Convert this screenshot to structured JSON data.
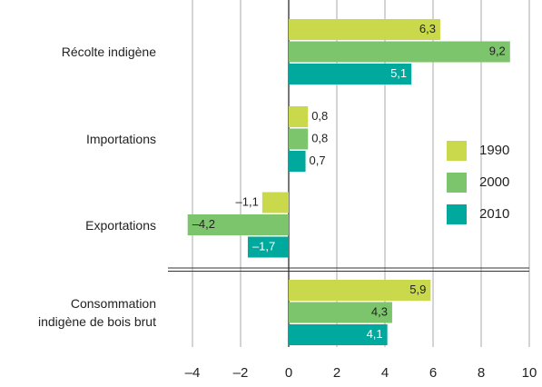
{
  "chart_data": {
    "type": "barh",
    "categories": [
      "Récolte indigène",
      "Importations",
      "Exportations",
      "Consommation indigène de bois brut"
    ],
    "series": [
      {
        "name": "1990",
        "color": "#c9d94b",
        "values": [
          6.3,
          0.8,
          -1.1,
          5.9
        ],
        "value_labels": [
          "6,3",
          "0,8",
          "–1,1",
          "5,9"
        ]
      },
      {
        "name": "2000",
        "color": "#7dc56c",
        "values": [
          9.2,
          0.8,
          -4.2,
          4.3
        ],
        "value_labels": [
          "9,2",
          "0,8",
          "–4,2",
          "4,3"
        ]
      },
      {
        "name": "2010",
        "color": "#00a99d",
        "values": [
          5.1,
          0.7,
          -1.7,
          4.1
        ],
        "value_labels": [
          "5,1",
          "0,7",
          "–1,7",
          "4,1"
        ]
      }
    ],
    "xlim": [
      -5,
      10
    ],
    "xticks": [
      {
        "value": -4,
        "label": "–4"
      },
      {
        "value": -2,
        "label": "–2"
      },
      0,
      2,
      4,
      6,
      8,
      10
    ],
    "grid": true,
    "legend": "right"
  }
}
